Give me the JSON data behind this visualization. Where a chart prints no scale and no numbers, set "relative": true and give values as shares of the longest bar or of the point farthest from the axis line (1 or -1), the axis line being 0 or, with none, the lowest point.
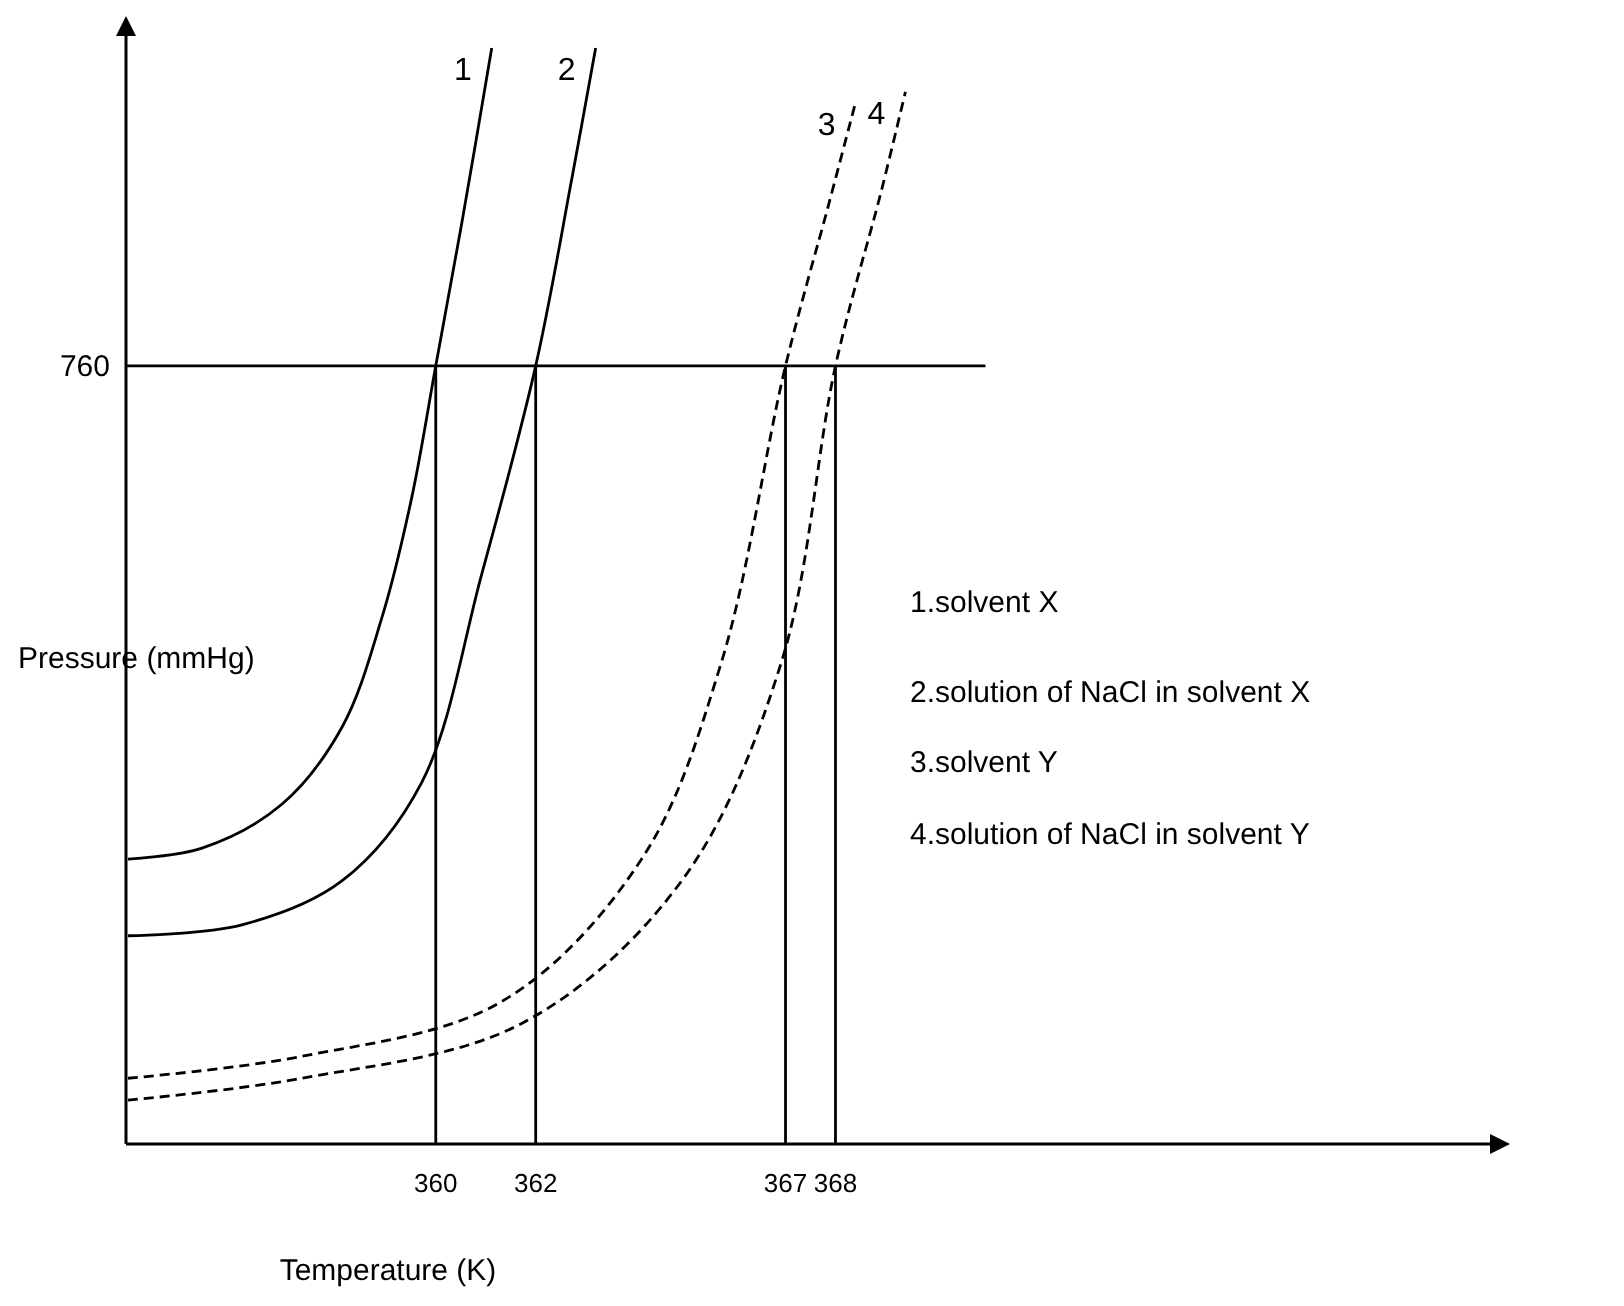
{
  "chart_data": {
    "type": "line",
    "relative": true,
    "xlabel": "Temperature (K)",
    "ylabel": "Pressure (mmHg)",
    "xlim": [
      353.8,
      381.1
    ],
    "xticks": [
      360,
      362,
      367,
      368
    ],
    "series": [
      {
        "name": "1",
        "color": "#000000",
        "line_style": "solid",
        "x": [
          353.84,
          355.32,
          356.92,
          358.12,
          358.92,
          359.52,
          360,
          360.52,
          361.12
        ],
        "values": [
          0.26,
          0.27,
          0.31,
          0.38,
          0.48,
          0.59,
          0.71,
          0.84,
          1
        ]
      },
      {
        "name": "2",
        "color": "#000000",
        "line_style": "solid",
        "x": [
          353.84,
          356.12,
          358.12,
          359.72,
          360.92,
          362,
          362.72,
          363.2
        ],
        "values": [
          0.19,
          0.2,
          0.24,
          0.33,
          0.52,
          0.71,
          0.88,
          1
        ]
      },
      {
        "name": "3",
        "color": "#000000",
        "line_style": "dashed",
        "x": [
          353.84,
          357.32,
          361.32,
          364.12,
          365.72,
          367,
          367.88,
          368.4
        ],
        "values": [
          0.06,
          0.08,
          0.13,
          0.26,
          0.44,
          0.71,
          0.86,
          0.95
        ]
      },
      {
        "name": "4",
        "color": "#000000",
        "line_style": "dashed",
        "x": [
          353.84,
          357.32,
          361.72,
          364.92,
          366.92,
          368,
          368.92,
          369.4
        ],
        "values": [
          0.04,
          0.06,
          0.11,
          0.24,
          0.44,
          0.71,
          0.87,
          0.96
        ]
      }
    ],
    "ref_lines": [
      {
        "axis": "y",
        "value": 0.71
      },
      {
        "axis": "x",
        "value": 360
      },
      {
        "axis": "x",
        "value": 362
      },
      {
        "axis": "x",
        "value": 367
      },
      {
        "axis": "x",
        "value": 368
      }
    ],
    "annotations": [
      "760",
      "1.solvent X",
      "2.solution of NaCl in solvent X",
      "3.solvent Y",
      "4.solution of NaCl in solvent Y"
    ]
  }
}
